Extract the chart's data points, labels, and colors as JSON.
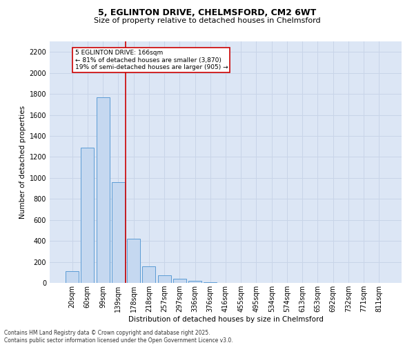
{
  "title_line1": "5, EGLINTON DRIVE, CHELMSFORD, CM2 6WT",
  "title_line2": "Size of property relative to detached houses in Chelmsford",
  "xlabel": "Distribution of detached houses by size in Chelmsford",
  "ylabel": "Number of detached properties",
  "bar_labels": [
    "20sqm",
    "60sqm",
    "99sqm",
    "139sqm",
    "178sqm",
    "218sqm",
    "257sqm",
    "297sqm",
    "336sqm",
    "376sqm",
    "416sqm",
    "455sqm",
    "495sqm",
    "534sqm",
    "574sqm",
    "613sqm",
    "653sqm",
    "692sqm",
    "732sqm",
    "771sqm",
    "811sqm"
  ],
  "bar_values": [
    110,
    1285,
    1765,
    960,
    420,
    155,
    70,
    40,
    20,
    5,
    0,
    0,
    0,
    0,
    0,
    0,
    0,
    0,
    0,
    0,
    0
  ],
  "bar_color": "#c5d8f0",
  "bar_edge_color": "#5b9bd5",
  "bar_width": 0.85,
  "vline_x": 3.5,
  "vline_color": "#cc0000",
  "annotation_line1": "5 EGLINTON DRIVE: 166sqm",
  "annotation_line2": "← 81% of detached houses are smaller (3,870)",
  "annotation_line3": "19% of semi-detached houses are larger (905) →",
  "annotation_box_color": "#ffffff",
  "annotation_box_edge_color": "#cc0000",
  "ylim_max": 2300,
  "yticks": [
    0,
    200,
    400,
    600,
    800,
    1000,
    1200,
    1400,
    1600,
    1800,
    2000,
    2200
  ],
  "grid_color": "#c8d4e8",
  "bg_color": "#dce6f5",
  "footer_line1": "Contains HM Land Registry data © Crown copyright and database right 2025.",
  "footer_line2": "Contains public sector information licensed under the Open Government Licence v3.0.",
  "title1_fontsize": 9,
  "title2_fontsize": 8,
  "tick_fontsize": 7,
  "axis_label_fontsize": 7.5,
  "footer_fontsize": 5.5
}
